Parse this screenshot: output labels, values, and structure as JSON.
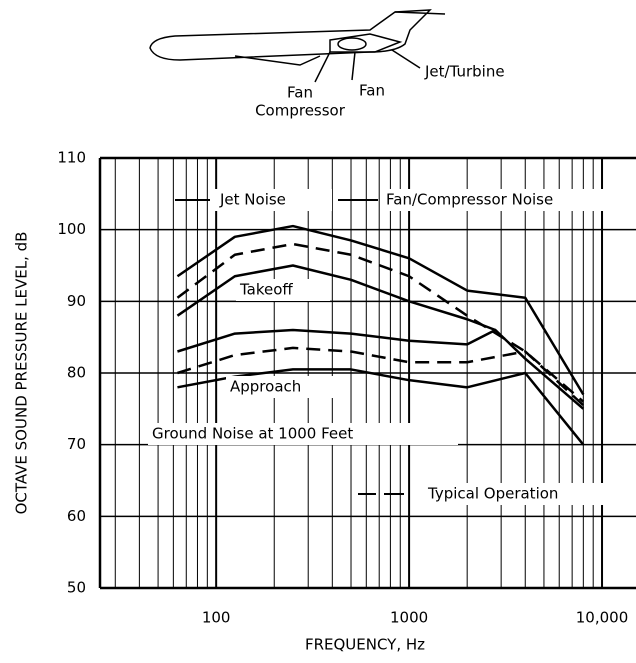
{
  "chart_data": {
    "type": "line",
    "xlabel": "FREQUENCY,  Hz",
    "ylabel": "OCTAVE SOUND PRESSURE LEVEL,  dB",
    "xscale": "log",
    "xlim": [
      25,
      15000
    ],
    "ylim": [
      50,
      110
    ],
    "xticks": [
      100,
      1000,
      {
        "value": 10000,
        "label": "10,000"
      }
    ],
    "yticks": [
      50,
      60,
      70,
      80,
      90,
      100,
      110
    ],
    "grid": true,
    "annotations": [
      "Jet Noise",
      "Fan/Compressor Noise",
      "Takeoff",
      "Approach",
      "Ground Noise at 1000 Feet",
      "Typical Operation"
    ],
    "diagram_labels": [
      "Fan",
      "Compressor",
      "Fan",
      "Jet/Turbine"
    ],
    "series": [
      {
        "color": "#000000",
        "dash": false,
        "x": [
          63,
          125,
          250,
          500,
          1000,
          2000,
          4000,
          8000
        ],
        "values": [
          93.5,
          99,
          100.5,
          98.5,
          96,
          91.5,
          90.5,
          77
        ]
      },
      {
        "color": "#000000",
        "dash": true,
        "x": [
          63,
          125,
          250,
          500,
          1000,
          2000,
          4000,
          8000
        ],
        "values": [
          90.5,
          96.5,
          98,
          96.5,
          93.5,
          88,
          83,
          76
        ]
      },
      {
        "color": "#000000",
        "dash": false,
        "x": [
          63,
          125,
          250,
          500,
          1000,
          2000,
          2800
        ],
        "values": [
          88,
          93.5,
          95,
          93,
          90,
          87.5,
          86
        ]
      },
      {
        "color": "#000000",
        "dash": false,
        "x": [
          63,
          125,
          250,
          500,
          1000,
          2000,
          2800,
          4000,
          8000
        ],
        "values": [
          83,
          85.5,
          86,
          85.5,
          84.5,
          84,
          86,
          82,
          75
        ]
      },
      {
        "color": "#000000",
        "dash": true,
        "x": [
          63,
          125,
          250,
          500,
          1000,
          2000,
          4000,
          8000
        ],
        "values": [
          80,
          82.5,
          83.5,
          83,
          81.5,
          81.5,
          83,
          75.5
        ]
      },
      {
        "color": "#000000",
        "dash": false,
        "x": [
          63,
          125,
          250,
          500,
          1000,
          2000,
          4000,
          8000
        ],
        "values": [
          78,
          79.5,
          80.5,
          80.5,
          79,
          78,
          80,
          70
        ]
      }
    ]
  }
}
